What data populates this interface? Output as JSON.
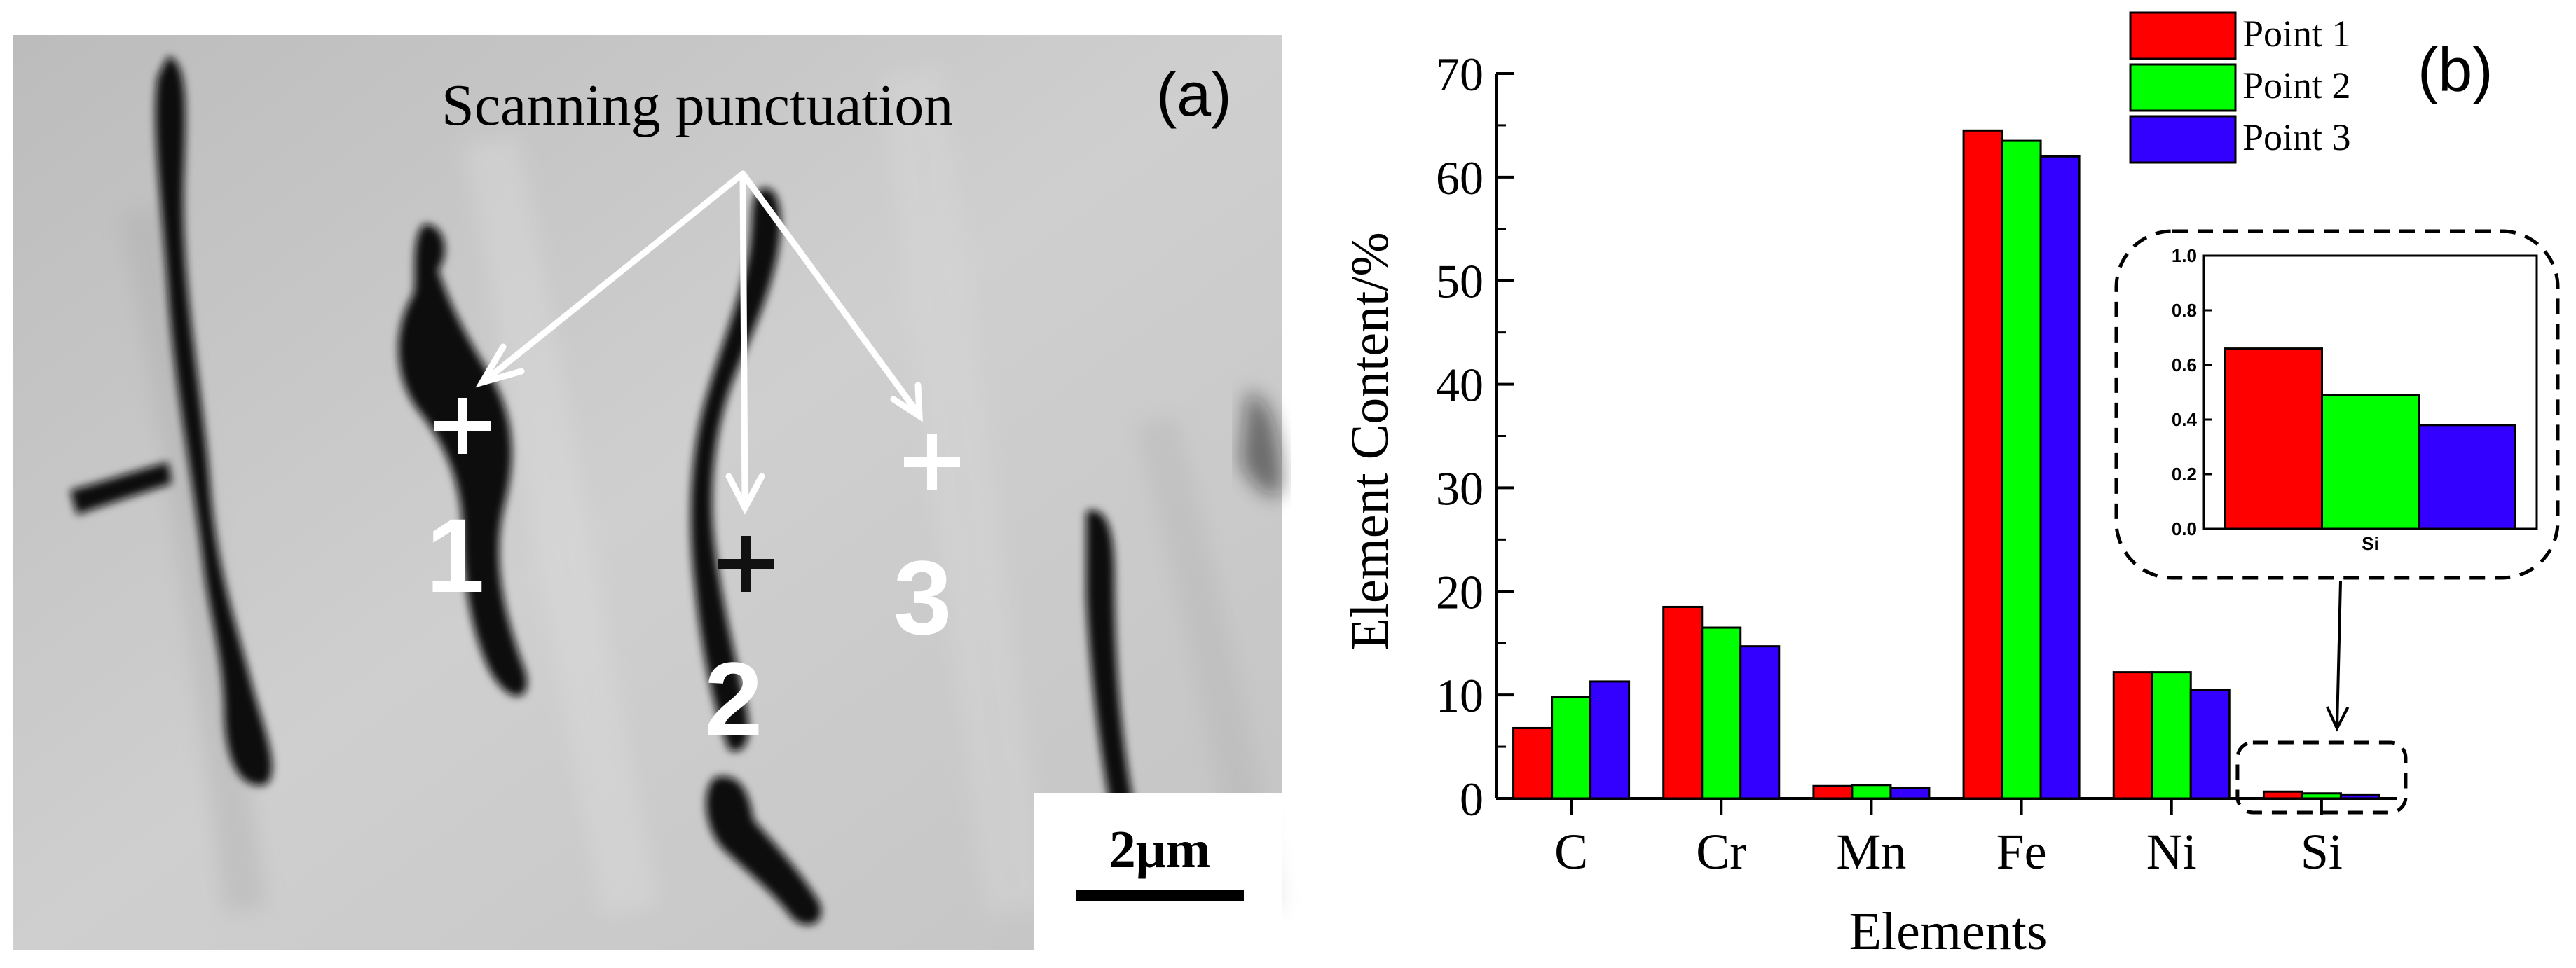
{
  "panel_a": {
    "label": "(a)",
    "annotation": "Scanning punctuation",
    "points": [
      "1",
      "2",
      "3"
    ],
    "scale_bar_label": "2μm",
    "colors": {
      "matrix": "#c8c8c8",
      "phase": "#0d0d0d",
      "markers_light": "#ffffff",
      "marker_dark": "#111111"
    }
  },
  "chart_data": [
    {
      "type": "bar",
      "panel_label": "(b)",
      "categories": [
        "C",
        "Cr",
        "Mn",
        "Fe",
        "Ni",
        "Si"
      ],
      "series": [
        {
          "name": "Point 1",
          "color": "#ff0000",
          "values": [
            6.8,
            18.5,
            1.2,
            64.5,
            12.2,
            0.66
          ]
        },
        {
          "name": "Point 2",
          "color": "#00ff00",
          "values": [
            9.8,
            16.5,
            1.3,
            63.5,
            12.2,
            0.49
          ]
        },
        {
          "name": "Point 3",
          "color": "#3300ff",
          "values": [
            11.3,
            14.7,
            1.0,
            62.0,
            10.5,
            0.38
          ]
        }
      ],
      "xlabel": "Elements",
      "ylabel": "Element Content/%",
      "ylim": [
        0,
        70
      ],
      "yticks": [
        0,
        10,
        20,
        30,
        40,
        50,
        60,
        70
      ],
      "grid": false,
      "legend": "top-right"
    },
    {
      "type": "bar",
      "role": "inset",
      "categories": [
        "Si"
      ],
      "series": [
        {
          "name": "Point 1",
          "color": "#ff0000",
          "values": [
            0.66
          ]
        },
        {
          "name": "Point 2",
          "color": "#00ff00",
          "values": [
            0.49
          ]
        },
        {
          "name": "Point 3",
          "color": "#3300ff",
          "values": [
            0.38
          ]
        }
      ],
      "ylim": [
        0,
        1.0
      ],
      "yticks": [
        "0.0",
        "0.2",
        "0.4",
        "0.6",
        "0.8",
        "1.0"
      ],
      "grid": false
    }
  ]
}
